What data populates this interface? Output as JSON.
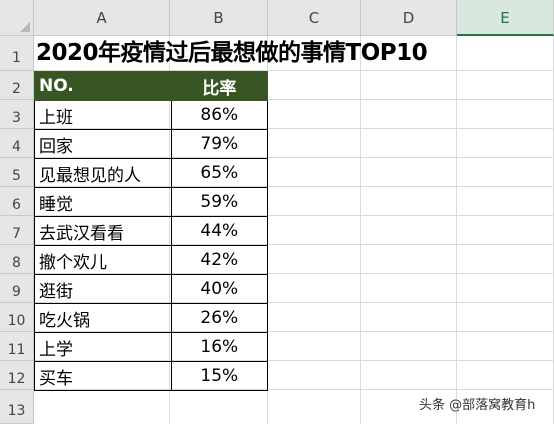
{
  "spreadsheet": {
    "columns": [
      "A",
      "B",
      "C",
      "D",
      "E"
    ],
    "active_column": "E",
    "rows": [
      "1",
      "2",
      "3",
      "4",
      "5",
      "6",
      "7",
      "8",
      "9",
      "10",
      "11",
      "12",
      "13"
    ]
  },
  "title": "2020年疫情过后最想做的事情TOP10",
  "table": {
    "headers": [
      "NO.",
      "比率"
    ],
    "rows": [
      {
        "item": "上班",
        "rate": "86%"
      },
      {
        "item": "回家",
        "rate": "79%"
      },
      {
        "item": "见最想见的人",
        "rate": "65%"
      },
      {
        "item": "睡觉",
        "rate": "59%"
      },
      {
        "item": "去武汉看看",
        "rate": "44%"
      },
      {
        "item": "撤个欢儿",
        "rate": "42%"
      },
      {
        "item": "逛街",
        "rate": "40%"
      },
      {
        "item": "吃火锅",
        "rate": "26%"
      },
      {
        "item": "上学",
        "rate": "16%"
      },
      {
        "item": "买车",
        "rate": "15%"
      }
    ]
  },
  "colors": {
    "header_fill": "#375623",
    "header_text": "#ffffff",
    "active_column_accent": "#217346"
  },
  "watermark": "头条 @部落窝教育h"
}
